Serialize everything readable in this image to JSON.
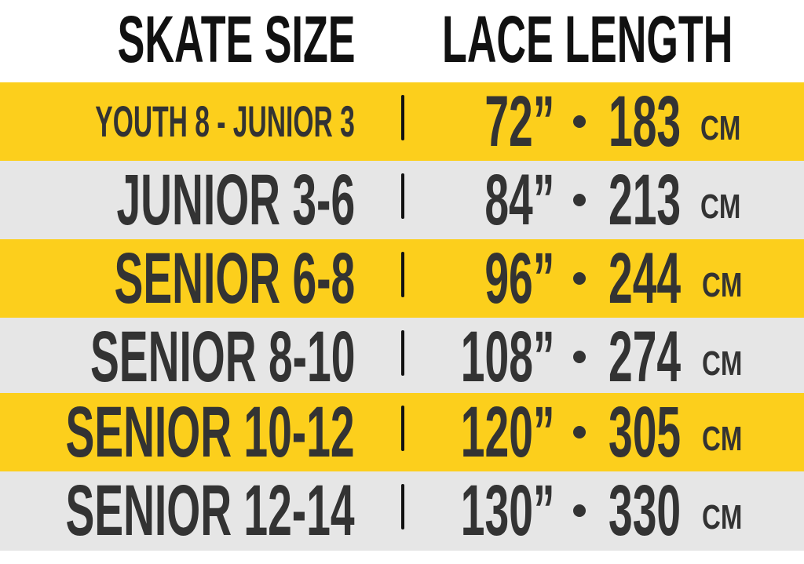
{
  "header": {
    "size_label": "SKATE SIZE",
    "length_label": "LACE LENGTH"
  },
  "colors": {
    "yellow": "#fccf1c",
    "gray": "#e6e6e6",
    "text": "#333333"
  },
  "rows": [
    {
      "size": "YOUTH 8 - JUNIOR 3",
      "inches": "72”",
      "cm": "183",
      "unit": "CM"
    },
    {
      "size": "JUNIOR 3-6",
      "inches": "84”",
      "cm": "213",
      "unit": "CM"
    },
    {
      "size": "SENIOR 6-8",
      "inches": "96”",
      "cm": "244",
      "unit": "CM"
    },
    {
      "size": "SENIOR 8-10",
      "inches": "108”",
      "cm": "274",
      "unit": "CM"
    },
    {
      "size": "SENIOR 10-12",
      "inches": "120”",
      "cm": "305",
      "unit": "CM"
    },
    {
      "size": "SENIOR 12-14",
      "inches": "130”",
      "cm": "330",
      "unit": "CM"
    }
  ]
}
